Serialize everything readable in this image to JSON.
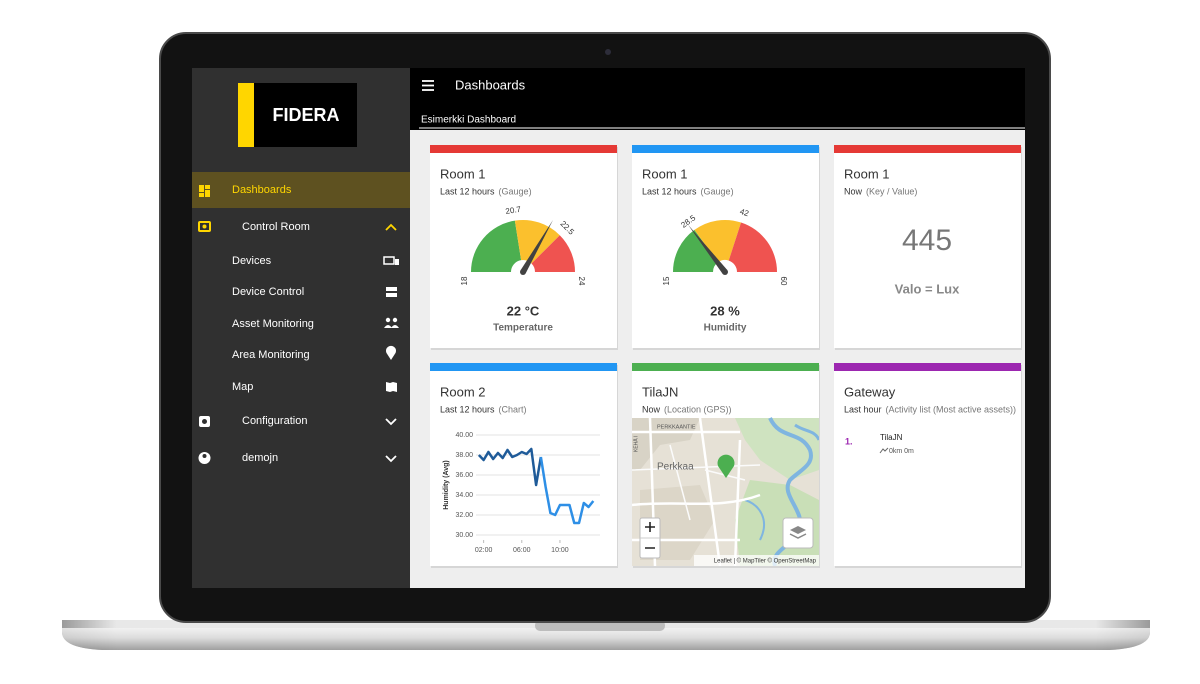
{
  "sidebar": {
    "logo": "FIDERA",
    "menu": [
      "Dashboards",
      "Control Room",
      "Devices",
      "Device Control",
      "Asset Monitoring",
      "Area Monitoring",
      "Map",
      "Configuration",
      "demojn"
    ]
  },
  "header": {
    "title": "Dashboards",
    "dashboard": "Esimerkki Dashboard"
  },
  "widgets": [
    {
      "title": "Room 1",
      "period": "Last 12 hours",
      "kind": "(Gauge)",
      "color": "#e53935",
      "gauge": {
        "ticks": [
          18,
          20.7,
          22.5,
          24
        ],
        "band_colors": [
          "#4caf50",
          "#fbc02d",
          "#ef5350"
        ],
        "value": 22
      },
      "value_label": "22 °C",
      "caption": "Temperature"
    },
    {
      "title": "Room 1",
      "period": "Last 12 hours",
      "kind": "(Gauge)",
      "color": "#2196f3",
      "gauge": {
        "ticks": [
          15,
          28.5,
          42,
          60
        ],
        "band_colors": [
          "#4caf50",
          "#fbc02d",
          "#ef5350"
        ],
        "value": 28
      },
      "value_label": "28 %",
      "caption": "Humidity"
    },
    {
      "title": "Room 1",
      "period": "Now",
      "kind": "(Key / Value)",
      "color": "#e53935",
      "value": 445,
      "caption": "Valo = Lux"
    },
    {
      "title": "Room 2",
      "period": "Last 12 hours",
      "kind": "(Chart)",
      "color": "#2196f3",
      "chart_data": {
        "type": "line",
        "y_label": "Humidity (Avg)",
        "x": [
          1.5,
          2,
          2.5,
          3,
          3.5,
          4,
          4.5,
          5,
          5.5,
          6,
          6.5,
          7,
          7.5,
          8,
          8.5,
          9,
          9.5,
          10,
          10.5,
          11,
          11.5,
          12,
          12.5,
          13,
          13.5
        ],
        "series": [
          {
            "color": "#1f5b99",
            "values": [
              38.0,
              37.5,
              38.3,
              37.6,
              38.2,
              37.7,
              38.5,
              37.8,
              38.0,
              38.3,
              38.1,
              38.6,
              35.0,
              37.8,
              null,
              null,
              null,
              null,
              null,
              null,
              null,
              null,
              null,
              null,
              null
            ]
          },
          {
            "color": "#2e8fe6",
            "values": [
              null,
              null,
              null,
              null,
              null,
              null,
              null,
              null,
              null,
              null,
              null,
              null,
              null,
              37.8,
              34.8,
              32.2,
              32.0,
              33.0,
              33.0,
              33.0,
              31.2,
              31.2,
              33.2,
              32.8,
              33.4
            ]
          }
        ],
        "xlim": [
          1.2,
          14.2
        ],
        "ylim": [
          29.5,
          40.5
        ],
        "xticks": [
          {
            "value": 2,
            "label": "02:00"
          },
          {
            "value": 6,
            "label": "06:00"
          },
          {
            "value": 10,
            "label": "10:00"
          }
        ],
        "yticks": [
          {
            "value": 30,
            "label": "30.00"
          },
          {
            "value": 32,
            "label": "32.00"
          },
          {
            "value": 34,
            "label": "34.00"
          },
          {
            "value": 36,
            "label": "36.00"
          },
          {
            "value": 38,
            "label": "38.00"
          },
          {
            "value": 40,
            "label": "40.00"
          }
        ],
        "grid": true
      }
    },
    {
      "title": "TilaJN",
      "period": "Now",
      "kind": "(Location (GPS))",
      "color": "#4caf50",
      "map": {
        "labels": [
          "PERKKAANTIE",
          "Perkkaa",
          "KEHÄ I"
        ],
        "attribution": "Leaflet | © MapTiler © OpenStreetMap"
      }
    },
    {
      "title": "Gateway",
      "period": "Last hour",
      "kind": "(Activity list (Most active assets))",
      "color": "#9c27b0",
      "list": [
        {
          "rank": "1.",
          "name": "TilaJN",
          "detail": "0km 0m"
        }
      ]
    }
  ]
}
